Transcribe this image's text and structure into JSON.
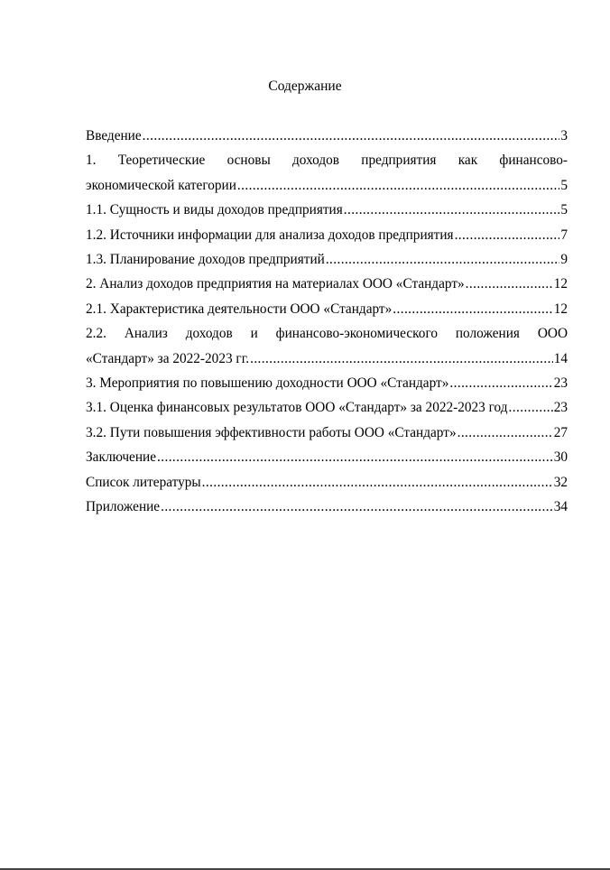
{
  "title": "Содержание",
  "entries": [
    {
      "lines": [
        "Введение"
      ],
      "page": "3"
    },
    {
      "lines": [
        "1. Теоретические основы доходов предприятия как финансово-",
        "экономической категории"
      ],
      "page": "5"
    },
    {
      "lines": [
        "1.1. Сущность и виды доходов предприятия"
      ],
      "page": "5"
    },
    {
      "lines": [
        "1.2. Источники информации для анализа доходов предприятия"
      ],
      "page": "7"
    },
    {
      "lines": [
        "1.3. Планирование доходов предприятий"
      ],
      "page": "9"
    },
    {
      "lines": [
        "2. Анализ доходов предприятия на материалах ООО «Стандарт»"
      ],
      "page": "12"
    },
    {
      "lines": [
        "2.1. Характеристика деятельности ООО «Стандарт»"
      ],
      "page": "12"
    },
    {
      "lines": [
        "2.2. Анализ доходов и финансово-экономического положения ООО",
        "«Стандарт» за 2022-2023 гг."
      ],
      "page": "14"
    },
    {
      "lines": [
        "3. Мероприятия по повышению доходности ООО «Стандарт»"
      ],
      "page": "23"
    },
    {
      "lines": [
        "3.1. Оценка финансовых результатов ООО «Стандарт» за 2022-2023 год"
      ],
      "page": "23"
    },
    {
      "lines": [
        "3.2. Пути повышения эффективности работы ООО «Стандарт»"
      ],
      "page": "27"
    },
    {
      "lines": [
        "Заключение"
      ],
      "page": "30"
    },
    {
      "lines": [
        "Список литературы"
      ],
      "page": "32"
    },
    {
      "lines": [
        "Приложение"
      ],
      "page": "34"
    }
  ]
}
